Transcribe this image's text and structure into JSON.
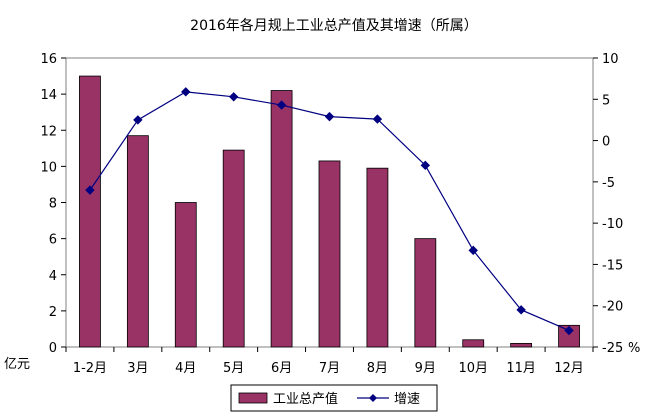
{
  "chart_data": {
    "type": "bar+line",
    "title": "2016年各月规上工业总产值及其增速（所属）",
    "categories": [
      "1-2月",
      "3月",
      "4月",
      "5月",
      "6月",
      "7月",
      "8月",
      "9月",
      "10月",
      "11月",
      "12月"
    ],
    "series": [
      {
        "name": "工业总产值",
        "type": "bar",
        "axis": "left",
        "color": "#993366",
        "values": [
          15.0,
          11.7,
          8.0,
          10.9,
          14.2,
          10.3,
          9.9,
          6.0,
          0.4,
          0.2,
          1.2
        ]
      },
      {
        "name": "增速",
        "type": "line",
        "axis": "right",
        "color": "#000080",
        "marker": "diamond",
        "values": [
          -6.0,
          2.5,
          5.9,
          5.3,
          4.3,
          2.9,
          2.6,
          -3.0,
          -13.3,
          -20.5,
          -23.0
        ]
      }
    ],
    "y_left": {
      "unit": "亿元",
      "ylim": [
        0,
        16
      ],
      "ticks": [
        "0",
        "2",
        "4",
        "6",
        "8",
        "10",
        "12",
        "14",
        "16"
      ]
    },
    "y_right": {
      "unit": "%",
      "ylim": [
        -25,
        10
      ],
      "ticks": [
        "-25",
        "-20",
        "-15",
        "-10",
        "-5",
        "0",
        "5",
        "10"
      ]
    },
    "grid": false,
    "legend_position": "bottom"
  }
}
